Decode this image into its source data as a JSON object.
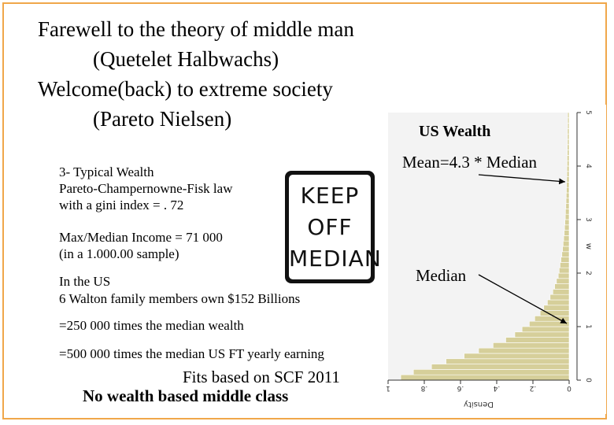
{
  "slide": {
    "title_lines": [
      "Farewell to the theory of middle man",
      "(Quetelet Halbwachs)",
      "Welcome(back) to extreme society",
      "(Pareto Nielsen)"
    ],
    "point": {
      "line1": "3- Typical Wealth",
      "line2": "Pareto-Champernowne-Fisk law",
      "line3": "with a gini index = . 72"
    },
    "income": {
      "line1": "Max/Median Income = 71 000",
      "line2": "(in a 1.000.00 sample)"
    },
    "walton": {
      "line1": "In the US",
      "line2": "6 Walton family members own $152 Billions"
    },
    "times_wealth": "=250 000 times the median wealth",
    "times_earning": "=500 000 times the median US FT yearly earning",
    "fits": "Fits based on SCF 2011",
    "conclusion": "No wealth based middle class",
    "sign_lines": [
      "KEEP",
      "OFF",
      "MEDIAN"
    ],
    "annotations": {
      "chart_title": "US Wealth",
      "mean": "Mean=4.3 * Median",
      "median": "Median"
    },
    "colors": {
      "border": "#f0a74a",
      "bars": "#d6cf9a",
      "bar_stroke": "#ffffff"
    }
  },
  "chart_data": {
    "type": "bar",
    "orientation": "rotated-90",
    "ylabel": "Density",
    "xlabel": "w",
    "density_ticks": [
      "1",
      ".8",
      ".6",
      ".4",
      ".2",
      "0"
    ],
    "w_ticks": [
      "0",
      "1",
      "2",
      "3",
      "4",
      "5"
    ],
    "density_range": [
      0,
      1
    ],
    "w_range": [
      0,
      5
    ],
    "bin_width": 0.1,
    "densities": [
      0.93,
      0.86,
      0.76,
      0.68,
      0.58,
      0.5,
      0.42,
      0.35,
      0.3,
      0.26,
      0.22,
      0.19,
      0.16,
      0.14,
      0.12,
      0.105,
      0.09,
      0.08,
      0.07,
      0.06,
      0.055,
      0.05,
      0.045,
      0.04,
      0.036,
      0.033,
      0.03,
      0.027,
      0.025,
      0.023,
      0.021,
      0.02,
      0.018,
      0.017,
      0.016,
      0.015,
      0.014,
      0.013,
      0.012,
      0.012,
      0.011,
      0.011,
      0.01,
      0.01,
      0.009,
      0.009,
      0.009,
      0.008,
      0.008,
      0.008
    ]
  }
}
